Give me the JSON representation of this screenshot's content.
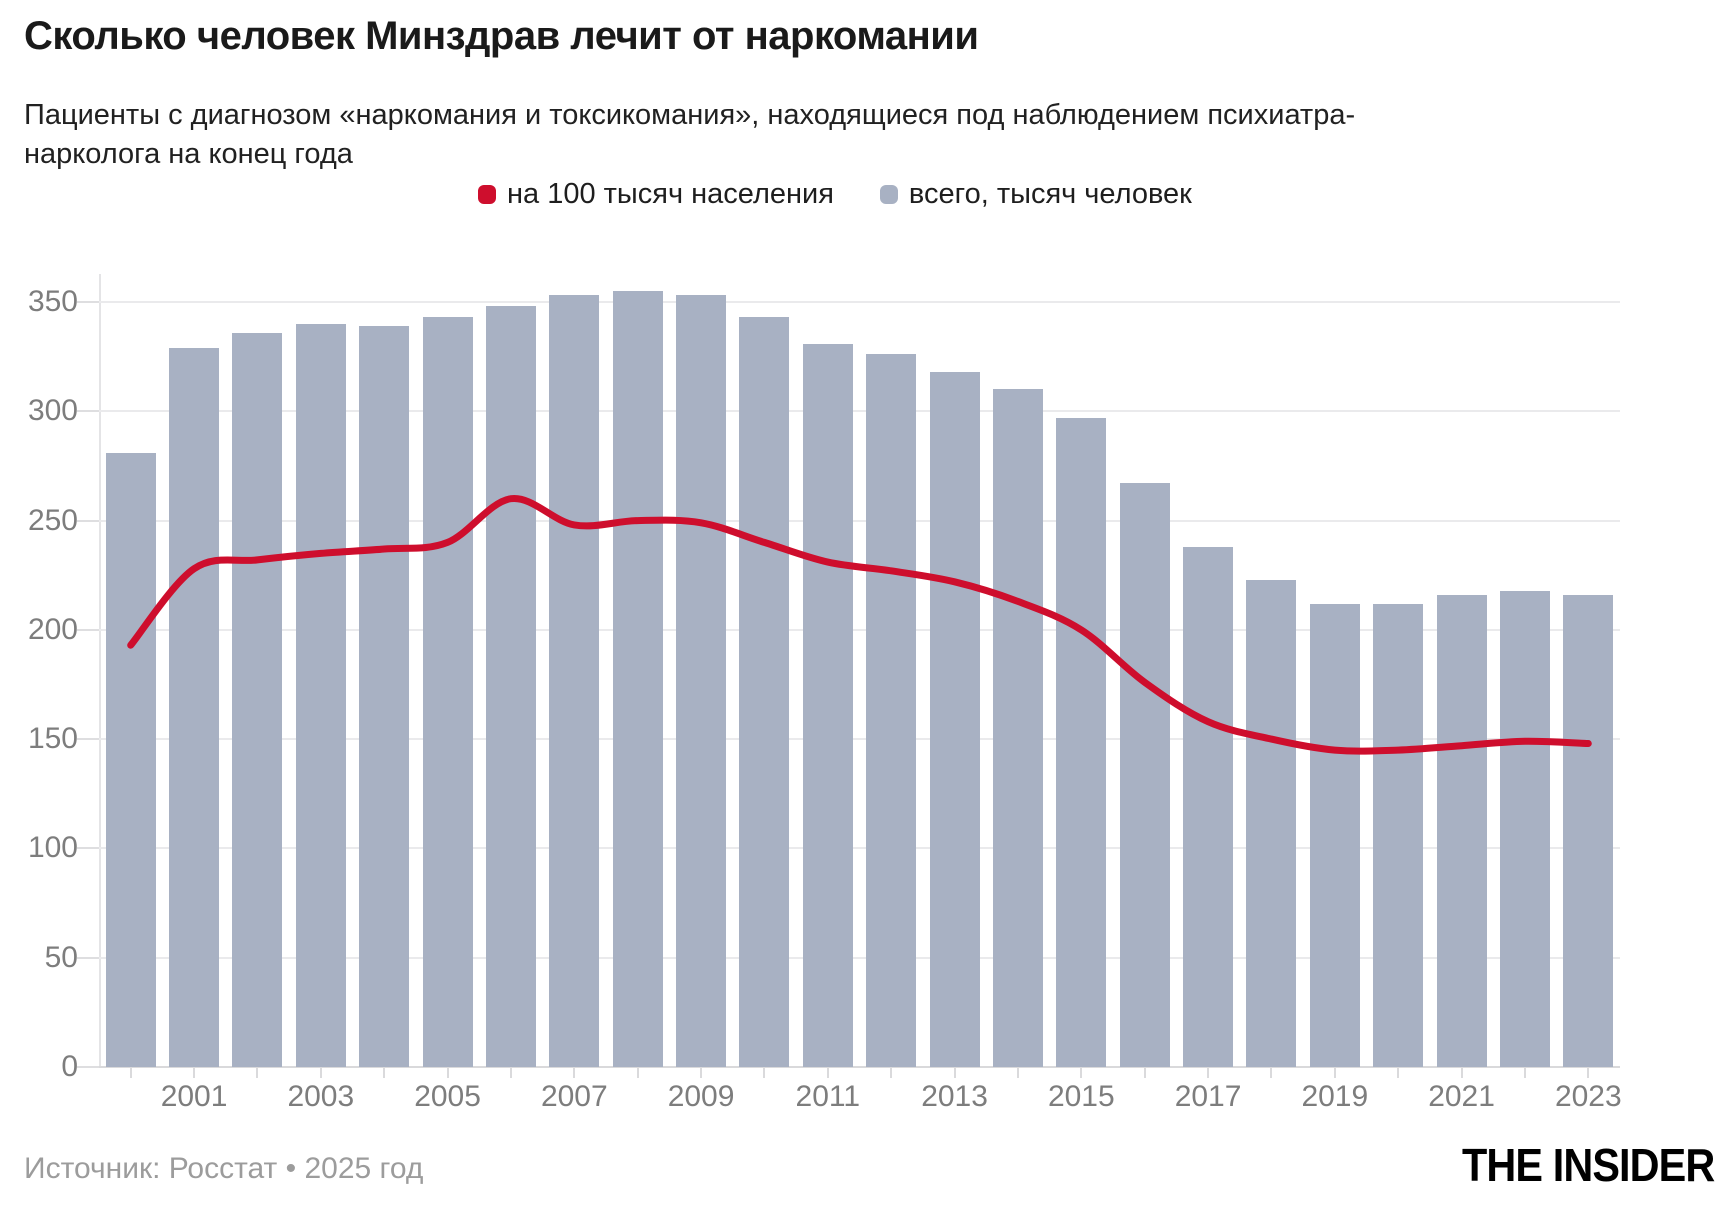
{
  "header": {
    "title": "Сколько человек Минздрав лечит от наркомании",
    "subtitle": "Пациенты с диагнозом «наркомания и токсикомания», находящиеся под наблюдением психиатра-нарколога на конец года"
  },
  "legend": [
    {
      "label": "на 100 тысяч населения",
      "color": "#ce0e2d"
    },
    {
      "label": "всего, тысяч человек",
      "color": "#a8b1c3"
    }
  ],
  "footer": {
    "source": "Источник: Росстат • 2025 год",
    "logo": "THE INSIDER"
  },
  "chart_data": {
    "type": "bar+line",
    "title": "Сколько человек Минздрав лечит от наркомании",
    "subtitle": "Пациенты с диагнозом «наркомания и токсикомания», находящиеся под наблюдением психиатра-нарколога на конец года",
    "categories": [
      2000,
      2001,
      2002,
      2003,
      2004,
      2005,
      2006,
      2007,
      2008,
      2009,
      2010,
      2011,
      2012,
      2013,
      2014,
      2015,
      2016,
      2017,
      2018,
      2019,
      2020,
      2021,
      2022,
      2023
    ],
    "series": [
      {
        "name": "всего, тысяч человек",
        "type": "bar",
        "color": "#a8b1c3",
        "values": [
          281,
          329,
          336,
          340,
          339,
          343,
          348,
          353,
          355,
          353,
          343,
          331,
          326,
          318,
          310,
          297,
          267,
          238,
          223,
          212,
          212,
          216,
          218,
          216
        ]
      },
      {
        "name": "на 100 тысяч населения",
        "type": "line",
        "color": "#ce0e2d",
        "values": [
          193,
          228,
          232,
          235,
          237,
          240,
          260,
          248,
          250,
          249,
          240,
          231,
          227,
          222,
          213,
          200,
          176,
          158,
          150,
          145,
          145,
          147,
          149,
          148
        ]
      }
    ],
    "xlabel": "",
    "ylabel": "",
    "ylim": [
      0,
      350
    ],
    "ytick_step": 50,
    "xtick_labels": [
      "2001",
      "2003",
      "2005",
      "2007",
      "2009",
      "2011",
      "2013",
      "2015",
      "2017",
      "2019",
      "2021",
      "2023"
    ],
    "grid": true,
    "legend_position": "top",
    "colors": {
      "grid": "#eaeaec",
      "axis": "#d9d9db",
      "tick_label": "#7d7d7d"
    }
  }
}
